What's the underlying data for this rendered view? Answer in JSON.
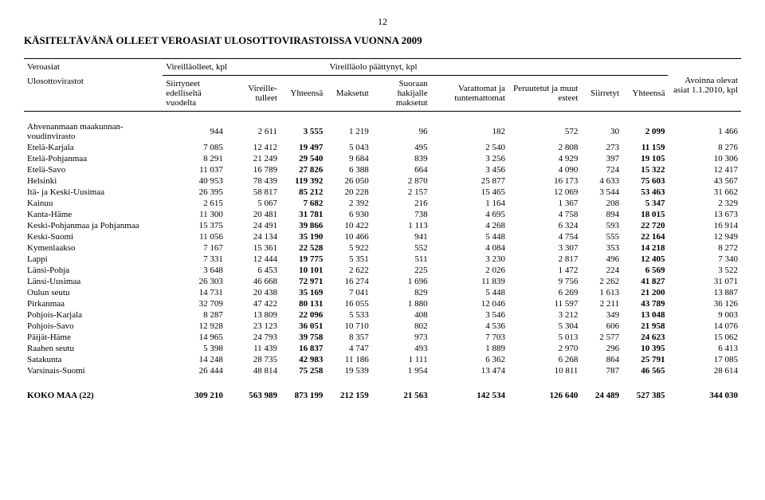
{
  "page_number": "12",
  "title": "KÄSITELTÄVÄNÄ OLLEET VEROASIAT ULOSOTTOVIRASTOISSA VUONNA 2009",
  "header": {
    "col1_top": "Veroasiat",
    "col1_sub": "Ulosottovirastot",
    "group_vireillaolleet": "Vireilläolleet, kpl",
    "siirtyneet": "Siirtyneet edelliseltä vuodelta",
    "vireilletulleet": "Vireille-tulleet",
    "yhteensa1": "Yhteensä",
    "group_paattynyt": "Vireilläolo päättynyt, kpl",
    "maksetut": "Maksetut",
    "suoraan": "Suoraan hakijalle maksetut",
    "varattomat": "Varattomat ja tuntemattomat",
    "peruutetut": "Peruutetut ja muut esteet",
    "siirretyt": "Siirretyt",
    "yhteensa2": "Yhteensä",
    "avoinna": "Avoinna olevat asiat 1.1.2010, kpl"
  },
  "rows": [
    {
      "name": "Ahvenanmaan maakunnan-voudinvirasto",
      "c": [
        "944",
        "2 611",
        "3 555",
        "1 219",
        "96",
        "182",
        "572",
        "30",
        "2 099",
        "1 466"
      ]
    },
    {
      "name": "Etelä-Karjala",
      "c": [
        "7 085",
        "12 412",
        "19 497",
        "5 043",
        "495",
        "2 540",
        "2 808",
        "273",
        "11 159",
        "8 276"
      ]
    },
    {
      "name": "Etelä-Pohjanmaa",
      "c": [
        "8 291",
        "21 249",
        "29 540",
        "9 684",
        "839",
        "3 256",
        "4 929",
        "397",
        "19 105",
        "10 306"
      ]
    },
    {
      "name": "Etelä-Savo",
      "c": [
        "11 037",
        "16 789",
        "27 826",
        "6 388",
        "664",
        "3 456",
        "4 090",
        "724",
        "15 322",
        "12 417"
      ]
    },
    {
      "name": "Helsinki",
      "c": [
        "40 953",
        "78 439",
        "119 392",
        "26 050",
        "2 870",
        "25 877",
        "16 173",
        "4 633",
        "75 603",
        "43 567"
      ]
    },
    {
      "name": "Itä- ja Keski-Uusimaa",
      "c": [
        "26 395",
        "58 817",
        "85 212",
        "20 228",
        "2 157",
        "15 465",
        "12 069",
        "3 544",
        "53 463",
        "31 662"
      ]
    },
    {
      "name": "Kainuu",
      "c": [
        "2 615",
        "5 067",
        "7 682",
        "2 392",
        "216",
        "1 164",
        "1 367",
        "208",
        "5 347",
        "2 329"
      ]
    },
    {
      "name": "Kanta-Häme",
      "c": [
        "11 300",
        "20 481",
        "31 781",
        "6 930",
        "738",
        "4 695",
        "4 758",
        "894",
        "18 015",
        "13 673"
      ]
    },
    {
      "name": "Keski-Pohjanmaa ja Pohjanmaa",
      "c": [
        "15 375",
        "24 491",
        "39 866",
        "10 422",
        "1 113",
        "4 268",
        "6 324",
        "593",
        "22 720",
        "16 914"
      ]
    },
    {
      "name": "Keski-Suomi",
      "c": [
        "11 056",
        "24 134",
        "35 190",
        "10 466",
        "941",
        "5 448",
        "4 754",
        "555",
        "22 164",
        "12 949"
      ]
    },
    {
      "name": "Kymenlaakso",
      "c": [
        "7 167",
        "15 361",
        "22 528",
        "5 922",
        "552",
        "4 084",
        "3 307",
        "353",
        "14 218",
        "8 272"
      ]
    },
    {
      "name": "Lappi",
      "c": [
        "7 331",
        "12 444",
        "19 775",
        "5 351",
        "511",
        "3 230",
        "2 817",
        "496",
        "12 405",
        "7 340"
      ]
    },
    {
      "name": "Länsi-Pohja",
      "c": [
        "3 648",
        "6 453",
        "10 101",
        "2 622",
        "225",
        "2 026",
        "1 472",
        "224",
        "6 569",
        "3 522"
      ]
    },
    {
      "name": "Länsi-Uusimaa",
      "c": [
        "26 303",
        "46 668",
        "72 971",
        "16 274",
        "1 696",
        "11 839",
        "9 756",
        "2 262",
        "41 827",
        "31 071"
      ]
    },
    {
      "name": "Oulun seutu",
      "c": [
        "14 731",
        "20 438",
        "35 169",
        "7 041",
        "829",
        "5 448",
        "6 269",
        "1 613",
        "21 200",
        "13 887"
      ]
    },
    {
      "name": "Pirkanmaa",
      "c": [
        "32 709",
        "47 422",
        "80 131",
        "16 055",
        "1 880",
        "12 046",
        "11 597",
        "2 211",
        "43 789",
        "36 126"
      ]
    },
    {
      "name": "Pohjois-Karjala",
      "c": [
        "8 287",
        "13 809",
        "22 096",
        "5 533",
        "408",
        "3 546",
        "3 212",
        "349",
        "13 048",
        "9 003"
      ]
    },
    {
      "name": "Pohjois-Savo",
      "c": [
        "12 928",
        "23 123",
        "36 051",
        "10 710",
        "802",
        "4 536",
        "5 304",
        "606",
        "21 958",
        "14 076"
      ]
    },
    {
      "name": "Päijät-Häme",
      "c": [
        "14 965",
        "24 793",
        "39 758",
        "8 357",
        "973",
        "7 703",
        "5 013",
        "2 577",
        "24 623",
        "15 062"
      ]
    },
    {
      "name": "Raahen seutu",
      "c": [
        "5 398",
        "11 439",
        "16 837",
        "4 747",
        "493",
        "1 889",
        "2 970",
        "296",
        "10 395",
        "6 413"
      ]
    },
    {
      "name": "Satakunta",
      "c": [
        "14 248",
        "28 735",
        "42 983",
        "11 186",
        "1 111",
        "6 362",
        "6 268",
        "864",
        "25 791",
        "17 085"
      ]
    },
    {
      "name": "Varsinais-Suomi",
      "c": [
        "26 444",
        "48 814",
        "75 258",
        "19 539",
        "1 954",
        "13 474",
        "10 811",
        "787",
        "46 565",
        "28 614"
      ]
    }
  ],
  "total": {
    "name": "KOKO MAA (22)",
    "c": [
      "309 210",
      "563 989",
      "873 199",
      "212 159",
      "21 563",
      "142 534",
      "126 640",
      "24 489",
      "527 385",
      "344 030"
    ]
  },
  "bold_cols": [
    2,
    8
  ]
}
